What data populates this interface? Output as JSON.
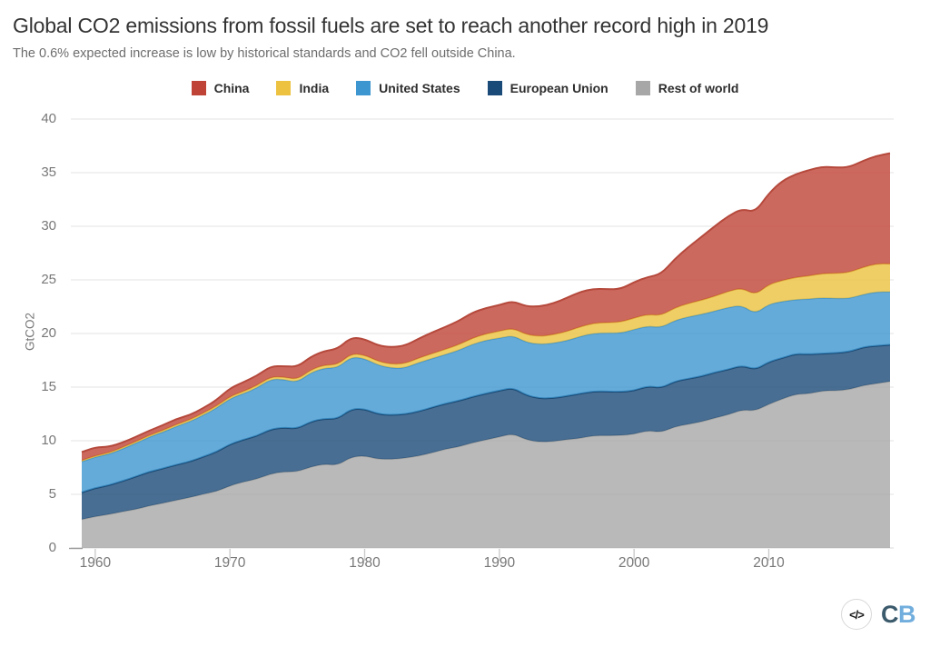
{
  "header": {
    "title": "Global CO2 emissions from fossil fuels are set to reach another record high in 2019",
    "subtitle": "The 0.6% expected increase is low by historical standards and CO2 fell outside China."
  },
  "legend": [
    {
      "label": "China",
      "color": "#bf4437"
    },
    {
      "label": "India",
      "color": "#ecc240"
    },
    {
      "label": "United States",
      "color": "#3d96cf"
    },
    {
      "label": "European Union",
      "color": "#1a4a78"
    },
    {
      "label": "Rest of world",
      "color": "#a7a7a7"
    }
  ],
  "y_axis": {
    "label": "GtCO2",
    "ticks": [
      0,
      5,
      10,
      15,
      20,
      25,
      30,
      35,
      40
    ]
  },
  "x_axis": {
    "ticks": [
      1960,
      1970,
      1980,
      1990,
      2000,
      2010
    ]
  },
  "chart_data": {
    "type": "area",
    "stacked": true,
    "title": "Global CO2 emissions from fossil fuels are set to reach another record high in 2019",
    "xlabel": "",
    "ylabel": "GtCO2",
    "xlim": [
      1959,
      2019
    ],
    "ylim": [
      0,
      40
    ],
    "grid": true,
    "legend_position": "top",
    "x": [
      1959,
      1960,
      1961,
      1962,
      1963,
      1964,
      1965,
      1966,
      1967,
      1968,
      1969,
      1970,
      1971,
      1972,
      1973,
      1974,
      1975,
      1976,
      1977,
      1978,
      1979,
      1980,
      1981,
      1982,
      1983,
      1984,
      1985,
      1986,
      1987,
      1988,
      1989,
      1990,
      1991,
      1992,
      1993,
      1994,
      1995,
      1996,
      1997,
      1998,
      1999,
      2000,
      2001,
      2002,
      2003,
      2004,
      2005,
      2006,
      2007,
      2008,
      2009,
      2010,
      2011,
      2012,
      2013,
      2014,
      2015,
      2016,
      2017,
      2018,
      2019
    ],
    "series": [
      {
        "key": "rest-of-world",
        "name": "Rest of world",
        "color": "#a7a7a7",
        "stroke": "#a2a2a0",
        "values": [
          2.66,
          2.94,
          3.13,
          3.38,
          3.6,
          3.93,
          4.17,
          4.45,
          4.71,
          5.01,
          5.27,
          5.8,
          6.17,
          6.43,
          6.9,
          7.11,
          7.11,
          7.57,
          7.82,
          7.71,
          8.49,
          8.6,
          8.28,
          8.28,
          8.38,
          8.58,
          8.88,
          9.22,
          9.44,
          9.81,
          10.08,
          10.36,
          10.66,
          10.09,
          9.88,
          9.93,
          10.11,
          10.23,
          10.48,
          10.47,
          10.5,
          10.61,
          10.96,
          10.79,
          11.3,
          11.53,
          11.77,
          12.13,
          12.43,
          12.88,
          12.79,
          13.41,
          13.9,
          14.34,
          14.39,
          14.66,
          14.68,
          14.77,
          15.16,
          15.33,
          15.53
        ]
      },
      {
        "key": "european-union",
        "name": "European Union",
        "color": "#1a4a78",
        "stroke": "#1b4a74",
        "values": [
          2.52,
          2.65,
          2.7,
          2.85,
          3.04,
          3.17,
          3.23,
          3.3,
          3.34,
          3.48,
          3.68,
          3.87,
          3.93,
          4.01,
          4.16,
          4.12,
          4.01,
          4.21,
          4.24,
          4.32,
          4.48,
          4.36,
          4.2,
          4.12,
          4.09,
          4.15,
          4.22,
          4.24,
          4.29,
          4.28,
          4.32,
          4.3,
          4.28,
          4.14,
          4.06,
          4.04,
          4.06,
          4.16,
          4.11,
          4.12,
          4.05,
          4.06,
          4.14,
          4.12,
          4.22,
          4.25,
          4.23,
          4.25,
          4.21,
          4.14,
          3.83,
          3.94,
          3.81,
          3.76,
          3.67,
          3.46,
          3.51,
          3.53,
          3.56,
          3.52,
          3.41
        ]
      },
      {
        "key": "united-states",
        "name": "United States",
        "color": "#3d96cf",
        "stroke": "#3f93cb",
        "values": [
          2.87,
          2.89,
          2.91,
          3.0,
          3.12,
          3.25,
          3.39,
          3.58,
          3.72,
          3.88,
          4.08,
          4.26,
          4.29,
          4.48,
          4.67,
          4.49,
          4.32,
          4.57,
          4.71,
          4.77,
          4.86,
          4.7,
          4.57,
          4.36,
          4.32,
          4.54,
          4.56,
          4.57,
          4.71,
          4.91,
          4.96,
          4.91,
          4.87,
          4.95,
          5.04,
          5.12,
          5.16,
          5.33,
          5.43,
          5.46,
          5.49,
          5.7,
          5.6,
          5.64,
          5.68,
          5.76,
          5.79,
          5.71,
          5.79,
          5.61,
          5.21,
          5.39,
          5.27,
          5.05,
          5.16,
          5.21,
          5.08,
          4.98,
          4.91,
          5.04,
          4.93
        ]
      },
      {
        "key": "india",
        "name": "India",
        "color": "#ecc240",
        "stroke": "#dcab38",
        "values": [
          0.11,
          0.12,
          0.13,
          0.14,
          0.15,
          0.15,
          0.17,
          0.17,
          0.18,
          0.19,
          0.2,
          0.2,
          0.21,
          0.22,
          0.23,
          0.24,
          0.26,
          0.27,
          0.29,
          0.29,
          0.3,
          0.33,
          0.36,
          0.38,
          0.41,
          0.43,
          0.47,
          0.5,
          0.53,
          0.57,
          0.61,
          0.65,
          0.69,
          0.72,
          0.76,
          0.8,
          0.86,
          0.91,
          0.95,
          0.97,
          1.04,
          1.07,
          1.1,
          1.13,
          1.18,
          1.26,
          1.32,
          1.4,
          1.51,
          1.62,
          1.77,
          1.84,
          1.97,
          2.09,
          2.15,
          2.26,
          2.35,
          2.43,
          2.55,
          2.62,
          2.62
        ]
      },
      {
        "key": "china",
        "name": "China",
        "color": "#bf4437",
        "stroke": "#b5493c",
        "values": [
          0.78,
          0.79,
          0.55,
          0.44,
          0.44,
          0.44,
          0.48,
          0.52,
          0.43,
          0.47,
          0.56,
          0.77,
          0.86,
          0.92,
          0.97,
          1.01,
          1.17,
          1.22,
          1.31,
          1.47,
          1.53,
          1.49,
          1.46,
          1.57,
          1.67,
          1.81,
          1.97,
          2.08,
          2.22,
          2.38,
          2.41,
          2.42,
          2.53,
          2.62,
          2.78,
          2.92,
          3.12,
          3.25,
          3.2,
          3.11,
          3.06,
          3.35,
          3.47,
          3.85,
          4.54,
          5.23,
          5.9,
          6.53,
          7.03,
          7.38,
          7.71,
          8.5,
          9.29,
          9.63,
          9.88,
          9.97,
          9.85,
          9.81,
          9.92,
          10.06,
          10.32
        ]
      }
    ]
  },
  "footer": {
    "code_icon": "</>",
    "logo_c": "C",
    "logo_b": "B"
  }
}
